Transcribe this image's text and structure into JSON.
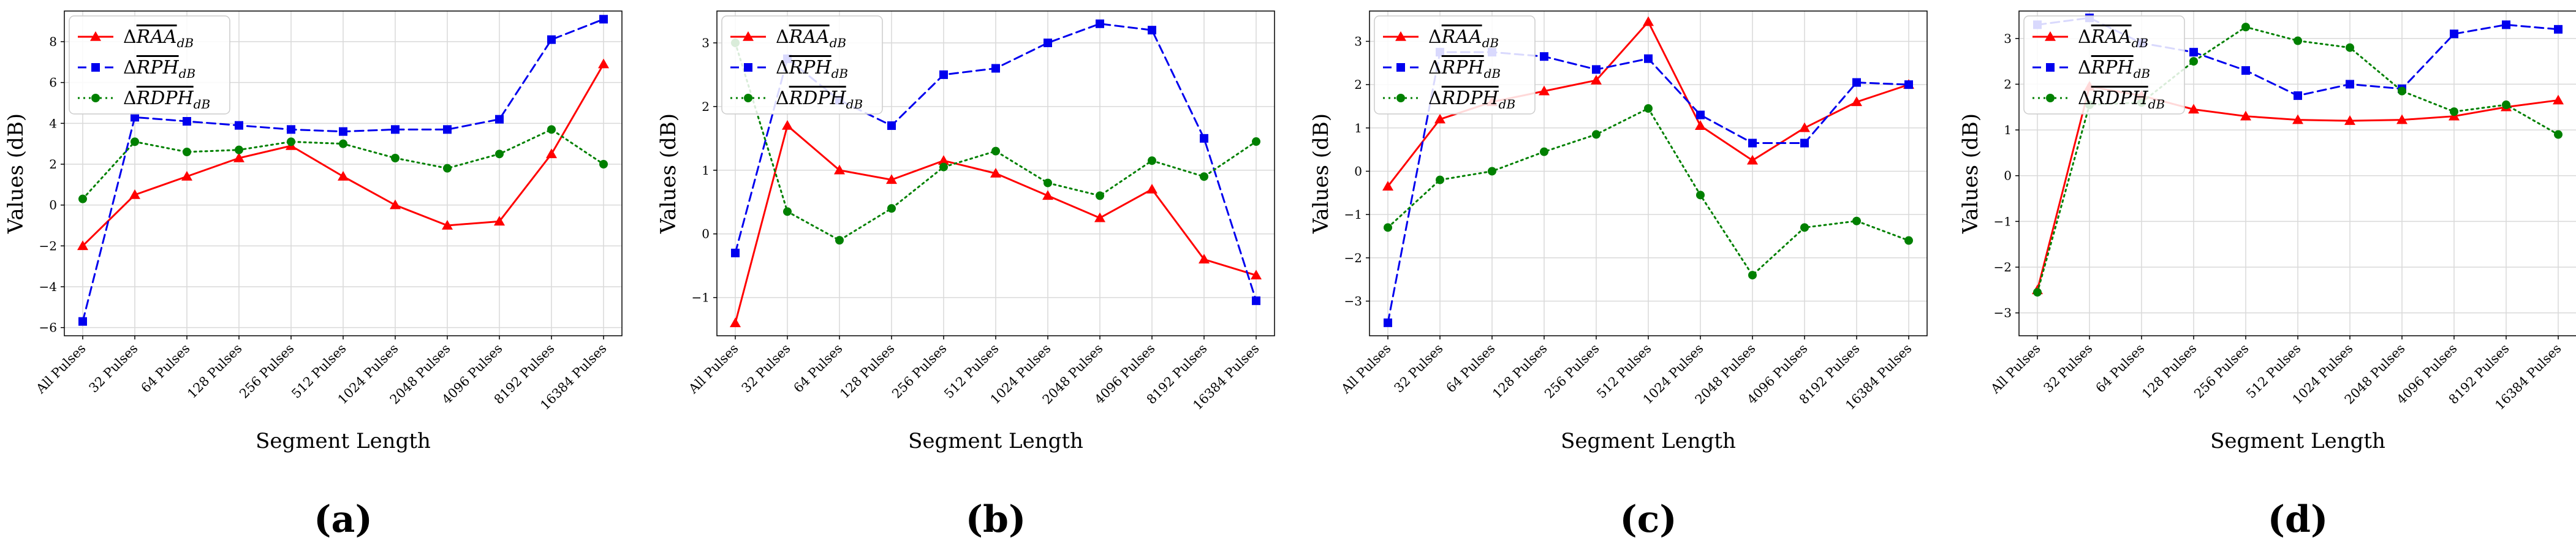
{
  "colors": {
    "raa": "#ff0000",
    "rph": "#0000ee",
    "rdph": "#008000",
    "grid": "#d9d9d9",
    "axis": "#000000"
  },
  "legend_labels": {
    "raa": {
      "delta": "Δ",
      "sym": "RAA",
      "sub": "dB"
    },
    "rph": {
      "delta": "Δ",
      "sym": "RPH",
      "sub": "dB"
    },
    "rdph": {
      "delta": "Δ",
      "sym": "RDPH",
      "sub": "dB"
    }
  },
  "chart_data": [
    {
      "type": "line",
      "panel_label": "(a)",
      "xlabel": "Segment Length",
      "ylabel": "Values (dB)",
      "categories": [
        "All Pulses",
        "32 Pulses",
        "64 Pulses",
        "128 Pulses",
        "256 Pulses",
        "512 Pulses",
        "1024 Pulses",
        "2048 Pulses",
        "4096 Pulses",
        "8192 Pulses",
        "16384 Pulses"
      ],
      "yticks": [
        -6,
        -4,
        -2,
        0,
        2,
        4,
        6,
        8
      ],
      "ylim": [
        -6.4,
        9.5
      ],
      "legend_position": "top-left",
      "series": [
        {
          "key": "raa",
          "name": "ΔRAA_dB",
          "marker": "triangle",
          "dash": "solid",
          "values": [
            -2.0,
            0.5,
            1.4,
            2.3,
            2.9,
            1.4,
            0.0,
            -1.0,
            -0.8,
            2.5,
            6.9
          ]
        },
        {
          "key": "rph",
          "name": "ΔRPH_dB",
          "marker": "square",
          "dash": "dashed",
          "values": [
            -5.7,
            4.3,
            4.1,
            3.9,
            3.7,
            3.6,
            3.7,
            3.7,
            4.2,
            8.1,
            9.1
          ]
        },
        {
          "key": "rdph",
          "name": "ΔRDPH_dB",
          "marker": "circle",
          "dash": "dotted",
          "values": [
            0.3,
            3.1,
            2.6,
            2.7,
            3.1,
            3.0,
            2.3,
            1.8,
            2.5,
            3.7,
            2.0
          ]
        }
      ]
    },
    {
      "type": "line",
      "panel_label": "(b)",
      "xlabel": "Segment Length",
      "ylabel": "Values (dB)",
      "categories": [
        "All Pulses",
        "32 Pulses",
        "64 Pulses",
        "128 Pulses",
        "256 Pulses",
        "512 Pulses",
        "1024 Pulses",
        "2048 Pulses",
        "4096 Pulses",
        "8192 Pulses",
        "16384 Pulses"
      ],
      "yticks": [
        -1,
        0,
        1,
        2,
        3
      ],
      "ylim": [
        -1.6,
        3.5
      ],
      "legend_position": "top-left",
      "series": [
        {
          "key": "raa",
          "name": "ΔRAA_dB",
          "marker": "triangle",
          "dash": "solid",
          "values": [
            -1.4,
            1.7,
            1.0,
            0.85,
            1.15,
            0.95,
            0.6,
            0.25,
            0.7,
            -0.4,
            -0.65
          ]
        },
        {
          "key": "rph",
          "name": "ΔRPH_dB",
          "marker": "square",
          "dash": "dashed",
          "values": [
            -0.3,
            2.75,
            2.1,
            1.7,
            2.5,
            2.6,
            3.0,
            3.3,
            3.2,
            1.5,
            -1.05
          ]
        },
        {
          "key": "rdph",
          "name": "ΔRDPH_dB",
          "marker": "circle",
          "dash": "dotted",
          "values": [
            3.0,
            0.35,
            -0.1,
            0.4,
            1.05,
            1.3,
            0.8,
            0.6,
            1.15,
            0.9,
            1.45
          ]
        }
      ]
    },
    {
      "type": "line",
      "panel_label": "(c)",
      "xlabel": "Segment Length",
      "ylabel": "Values (dB)",
      "categories": [
        "All Pulses",
        "32 Pulses",
        "64 Pulses",
        "128 Pulses",
        "256 Pulses",
        "512 Pulses",
        "1024 Pulses",
        "2048 Pulses",
        "4096 Pulses",
        "8192 Pulses",
        "16384 Pulses"
      ],
      "yticks": [
        -3,
        -2,
        -1,
        0,
        1,
        2,
        3
      ],
      "ylim": [
        -3.8,
        3.7
      ],
      "legend_position": "top-left",
      "series": [
        {
          "key": "raa",
          "name": "ΔRAA_dB",
          "marker": "triangle",
          "dash": "solid",
          "values": [
            -0.35,
            1.2,
            1.6,
            1.85,
            2.1,
            3.45,
            1.05,
            0.25,
            1.0,
            1.6,
            2.0
          ]
        },
        {
          "key": "rph",
          "name": "ΔRPH_dB",
          "marker": "square",
          "dash": "dashed",
          "values": [
            -3.5,
            2.75,
            2.75,
            2.65,
            2.35,
            2.6,
            1.3,
            0.65,
            0.65,
            2.05,
            2.0
          ]
        },
        {
          "key": "rdph",
          "name": "ΔRDPH_dB",
          "marker": "circle",
          "dash": "dotted",
          "values": [
            -1.3,
            -0.2,
            0.0,
            0.45,
            0.85,
            1.45,
            -0.55,
            -2.4,
            -1.3,
            -1.15,
            -1.6
          ]
        }
      ]
    },
    {
      "type": "line",
      "panel_label": "(d)",
      "xlabel": "Segment Length",
      "ylabel": "Values (dB)",
      "categories": [
        "All Pulses",
        "32 Pulses",
        "64 Pulses",
        "128 Pulses",
        "256 Pulses",
        "512 Pulses",
        "1024 Pulses",
        "2048 Pulses",
        "4096 Pulses",
        "8192 Pulses",
        "16384 Pulses"
      ],
      "yticks": [
        -3,
        -2,
        -1,
        0,
        1,
        2,
        3
      ],
      "ylim": [
        -3.5,
        3.6
      ],
      "legend_position": "top-left",
      "series": [
        {
          "key": "raa",
          "name": "ΔRAA_dB",
          "marker": "triangle",
          "dash": "solid",
          "values": [
            -2.5,
            1.95,
            1.75,
            1.45,
            1.3,
            1.22,
            1.2,
            1.22,
            1.3,
            1.5,
            1.65
          ]
        },
        {
          "key": "rph",
          "name": "ΔRPH_dB",
          "marker": "square",
          "dash": "dashed",
          "values": [
            3.3,
            3.45,
            2.9,
            2.7,
            2.3,
            1.75,
            2.0,
            1.9,
            3.1,
            3.3,
            3.2
          ]
        },
        {
          "key": "rdph",
          "name": "ΔRDPH_dB",
          "marker": "circle",
          "dash": "dotted",
          "values": [
            -2.55,
            1.55,
            1.6,
            2.5,
            3.25,
            2.95,
            2.8,
            1.85,
            1.4,
            1.55,
            0.9
          ]
        }
      ]
    }
  ]
}
